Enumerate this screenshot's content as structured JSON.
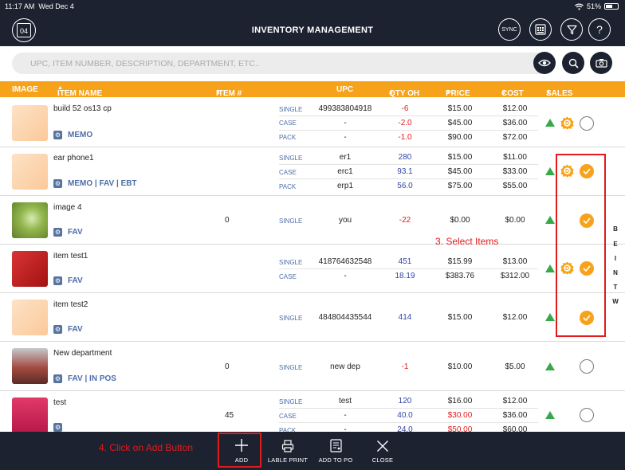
{
  "status": {
    "time": "11:17 AM",
    "date": "Wed Dec 4",
    "battery": "51%"
  },
  "header": {
    "calendar_day": "04",
    "title": "INVENTORY MANAGEMENT",
    "sync_label": "SYNC",
    "help_label": "?"
  },
  "search": {
    "placeholder": "UPC, ITEM NUMBER, DESCRIPTION, DEPARTMENT, ETC.."
  },
  "columns": {
    "image": "IMAGE",
    "item_name": "ITEM NAME",
    "item_no": "ITEM #",
    "upc": "UPC",
    "qty": "QTY OH",
    "price": "PRICE",
    "cost": "COST",
    "sales": "SALES"
  },
  "rows": [
    {
      "name": "build 52 os13 cp",
      "tags": "MEMO",
      "item_no": "",
      "units": [
        {
          "type": "SINGLE",
          "upc": "499383804918",
          "qty": "-6",
          "price": "$15.00",
          "cost": "$12.00"
        },
        {
          "type": "CASE",
          "upc": "-",
          "qty": "-2.0",
          "price": "$45.00",
          "cost": "$36.00"
        },
        {
          "type": "PACK",
          "upc": "-",
          "qty": "-1.0",
          "price": "$90.00",
          "cost": "$72.00"
        }
      ],
      "selected": false
    },
    {
      "name": "ear phone1",
      "tags": "MEMO | FAV | EBT",
      "item_no": "",
      "units": [
        {
          "type": "SINGLE",
          "upc": "er1",
          "qty": "280",
          "price": "$15.00",
          "cost": "$11.00"
        },
        {
          "type": "CASE",
          "upc": "erc1",
          "qty": "93.1",
          "price": "$45.00",
          "cost": "$33.00"
        },
        {
          "type": "PACK",
          "upc": "erp1",
          "qty": "56.0",
          "price": "$75.00",
          "cost": "$55.00"
        }
      ],
      "selected": true
    },
    {
      "name": "image 4",
      "tags": "FAV",
      "item_no": "0",
      "units": [
        {
          "type": "SINGLE",
          "upc": "you",
          "qty": "-22",
          "price": "$0.00",
          "cost": "$0.00"
        }
      ],
      "selected": true
    },
    {
      "name": "item test1",
      "tags": "FAV",
      "item_no": "",
      "units": [
        {
          "type": "SINGLE",
          "upc": "418764632548",
          "qty": "451",
          "price": "$15.99",
          "cost": "$13.00"
        },
        {
          "type": "CASE",
          "upc": "-",
          "qty": "18.19",
          "price": "$383.76",
          "cost": "$312.00"
        }
      ],
      "selected": true
    },
    {
      "name": "item test2",
      "tags": "FAV",
      "item_no": "",
      "units": [
        {
          "type": "SINGLE",
          "upc": "484804435544",
          "qty": "414",
          "price": "$15.00",
          "cost": "$12.00"
        }
      ],
      "selected": true
    },
    {
      "name": "New department",
      "tags": "FAV | IN POS",
      "item_no": "0",
      "units": [
        {
          "type": "SINGLE",
          "upc": "new dep",
          "qty": "-1",
          "price": "$10.00",
          "cost": "$5.00"
        }
      ],
      "selected": false
    },
    {
      "name": "test",
      "tags": "",
      "item_no": "45",
      "units": [
        {
          "type": "SINGLE",
          "upc": "test",
          "qty": "120",
          "price": "$16.00",
          "cost": "$12.00"
        },
        {
          "type": "CASE",
          "upc": "-",
          "qty": "40.0",
          "price": "$30.00",
          "cost": "$36.00"
        },
        {
          "type": "PACK",
          "upc": "-",
          "qty": "24.0",
          "price": "$50.00",
          "cost": "$60.00"
        }
      ],
      "selected": false
    }
  ],
  "alpha_index": [
    "B",
    "E",
    "I",
    "N",
    "T",
    "W"
  ],
  "annotations": {
    "select_items": "3. Select Items",
    "click_add": "4. Click on Add Button"
  },
  "bottom_bar": {
    "add": "ADD",
    "label_print": "LABLE PRINT",
    "add_to_po": "ADD TO PO",
    "close": "CLOSE"
  },
  "colors": {
    "header_bg": "#1c2230",
    "accent": "#f7a21b",
    "annotation": "#e01b1b",
    "negative": "#e21e1e",
    "positive": "#3245a6",
    "tag_blue": "#4d6ea8",
    "trend_green": "#38a94b"
  }
}
